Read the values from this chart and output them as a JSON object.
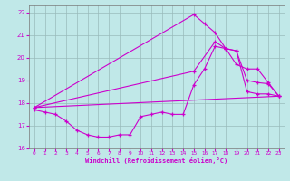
{
  "xlabel": "Windchill (Refroidissement éolien,°C)",
  "xlim": [
    -0.5,
    23.5
  ],
  "ylim": [
    16,
    22.3
  ],
  "yticks": [
    16,
    17,
    18,
    19,
    20,
    21,
    22
  ],
  "xticks": [
    0,
    1,
    2,
    3,
    4,
    5,
    6,
    7,
    8,
    9,
    10,
    11,
    12,
    13,
    14,
    15,
    16,
    17,
    18,
    19,
    20,
    21,
    22,
    23
  ],
  "bg_color": "#c0e8e8",
  "grid_color": "#99bbbb",
  "line_color": "#cc00cc",
  "curve1_x": [
    0,
    1,
    2,
    3,
    4,
    5,
    6,
    7,
    8,
    9,
    10,
    11,
    12,
    13,
    14,
    15,
    16,
    17,
    18,
    19,
    20,
    21,
    22,
    23
  ],
  "curve1_y": [
    17.7,
    17.6,
    17.5,
    17.2,
    16.8,
    16.6,
    16.5,
    16.5,
    16.6,
    16.6,
    17.4,
    17.5,
    17.6,
    17.5,
    17.5,
    18.8,
    19.5,
    20.5,
    20.4,
    20.3,
    18.5,
    18.4,
    18.4,
    18.3
  ],
  "curve2_x": [
    0,
    23
  ],
  "curve2_y": [
    17.8,
    18.3
  ],
  "curve3_x": [
    0,
    15,
    16,
    17,
    18,
    19,
    20,
    21,
    22,
    23
  ],
  "curve3_y": [
    17.8,
    21.9,
    21.5,
    21.1,
    20.4,
    20.3,
    19.0,
    18.9,
    18.85,
    18.3
  ],
  "curve4_x": [
    0,
    15,
    17,
    18,
    19,
    20,
    21,
    22,
    23
  ],
  "curve4_y": [
    17.8,
    19.4,
    20.7,
    20.4,
    19.7,
    19.5,
    19.5,
    18.9,
    18.3
  ]
}
